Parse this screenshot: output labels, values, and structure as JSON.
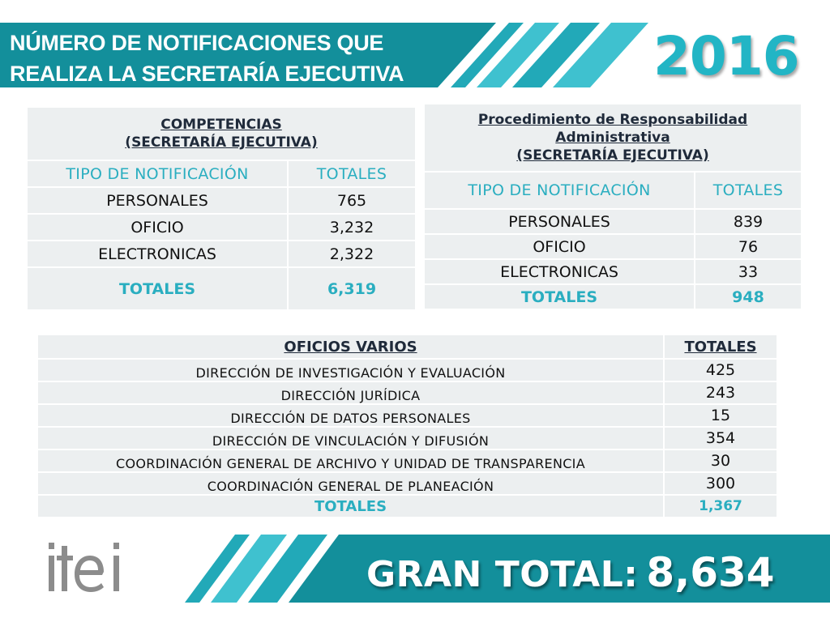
{
  "header": {
    "title_line1": "NÚMERO DE NOTIFICACIONES QUE",
    "title_line2": "REALIZA LA SECRETARÍA EJECUTIVA",
    "year": "2016"
  },
  "competencias": {
    "title_line1": "COMPETENCIAS",
    "title_line2": "(SECRETARÍA EJECUTIVA)",
    "col_type": "TIPO DE NOTIFICACIÓN",
    "col_total": "TOTALES",
    "rows": [
      {
        "label": "PERSONALES",
        "value": "765"
      },
      {
        "label": "OFICIO",
        "value": "3,232"
      },
      {
        "label": "ELECTRONICAS",
        "value": "2,322"
      }
    ],
    "total_label": "TOTALES",
    "total_value": "6,319"
  },
  "procedimiento": {
    "title_line1": "Procedimiento de Responsabilidad",
    "title_line2": "Administrativa",
    "title_line3": "(SECRETARÍA EJECUTIVA)",
    "col_type": "TIPO DE NOTIFICACIÓN",
    "col_total": "TOTALES",
    "rows": [
      {
        "label": "PERSONALES",
        "value": "839"
      },
      {
        "label": "OFICIO",
        "value": "76"
      },
      {
        "label": "ELECTRONICAS",
        "value": "33"
      }
    ],
    "total_label": "TOTALES",
    "total_value": "948"
  },
  "oficios": {
    "col_name": "OFICIOS VARIOS",
    "col_total": "TOTALES",
    "rows": [
      {
        "label": "DIRECCIÓN DE INVESTIGACIÓN Y EVALUACIÓN",
        "value": "425"
      },
      {
        "label": "DIRECCIÓN JURÍDICA",
        "value": "243"
      },
      {
        "label": "DIRECCIÓN DE DATOS PERSONALES",
        "value": "15"
      },
      {
        "label": "DIRECCIÓN DE VINCULACIÓN Y DIFUSIÓN",
        "value": "354"
      },
      {
        "label": "COORDINACIÓN GENERAL DE ARCHIVO Y UNIDAD DE TRANSPARENCIA",
        "value": "30"
      },
      {
        "label": "COORDINACIÓN GENERAL DE PLANEACIÓN",
        "value": "300"
      }
    ],
    "total_label": "TOTALES",
    "total_value": "1,367"
  },
  "footer": {
    "logo_text": "itei",
    "grand_total_label": "GRAN TOTAL:",
    "grand_total_value": "8,634"
  },
  "colors": {
    "teal_dark": "#138f9b",
    "teal_light": "#2aaec0",
    "year": "#22b5c5",
    "cell_bg": "#eceff0",
    "logo_gray": "#8c8c8c"
  }
}
